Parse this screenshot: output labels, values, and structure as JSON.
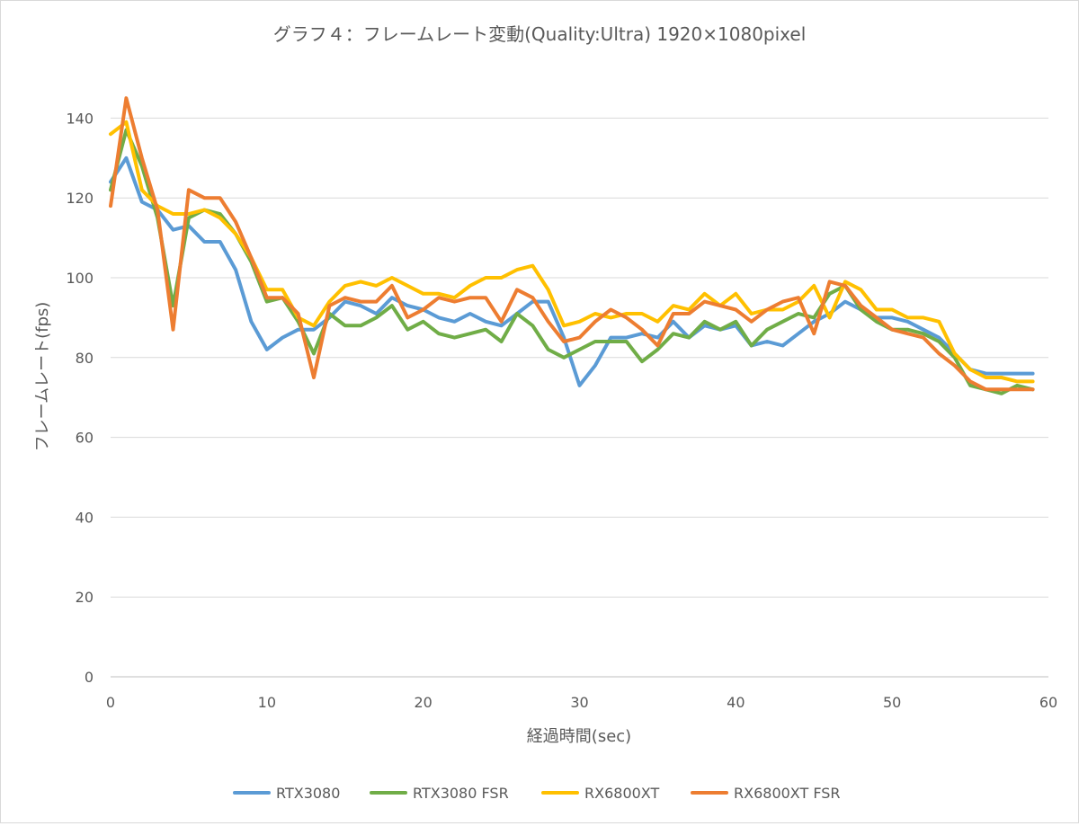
{
  "chart_data": {
    "type": "line",
    "title": "グラフ４：フレームレート変動(Quality:Ultra) 1920×1080pixel",
    "xlabel": "経過時間(sec)",
    "ylabel": "フレームレート(fps)",
    "xlim": [
      0,
      60
    ],
    "ylim": [
      0,
      150
    ],
    "xticks": [
      0,
      10,
      20,
      30,
      40,
      50,
      60
    ],
    "yticks": [
      0,
      20,
      40,
      60,
      80,
      100,
      120,
      140
    ],
    "x_tick_labels": [
      "0",
      "10",
      "20",
      "30",
      "40",
      "50",
      "60"
    ],
    "y_tick_labels": [
      "0",
      "20",
      "40",
      "60",
      "80",
      "100",
      "120",
      "140"
    ],
    "grid": "horizontal",
    "legend_position": "bottom",
    "x": [
      0,
      1,
      2,
      3,
      4,
      5,
      6,
      7,
      8,
      9,
      10,
      11,
      12,
      13,
      14,
      15,
      16,
      17,
      18,
      19,
      20,
      21,
      22,
      23,
      24,
      25,
      26,
      27,
      28,
      29,
      30,
      31,
      32,
      33,
      34,
      35,
      36,
      37,
      38,
      39,
      40,
      41,
      42,
      43,
      44,
      45,
      46,
      47,
      48,
      49,
      50,
      51,
      52,
      53,
      54,
      55,
      56,
      57,
      58,
      59
    ],
    "series": [
      {
        "name": "RTX3080",
        "color": "#5b9bd5",
        "values": [
          124,
          130,
          119,
          117,
          112,
          113,
          109,
          109,
          102,
          89,
          82,
          85,
          87,
          87,
          90,
          94,
          93,
          91,
          95,
          93,
          92,
          90,
          89,
          91,
          89,
          88,
          91,
          94,
          94,
          85,
          73,
          78,
          85,
          85,
          86,
          85,
          89,
          85,
          88,
          87,
          88,
          83,
          84,
          83,
          86,
          89,
          91,
          94,
          92,
          90,
          90,
          89,
          87,
          85,
          81,
          77,
          76,
          76,
          76,
          76
        ],
        "zorder": 0
      },
      {
        "name": "RTX3080 FSR",
        "color": "#70ad47",
        "values": [
          122,
          137,
          128,
          115,
          93,
          115,
          117,
          116,
          111,
          104,
          94,
          95,
          89,
          81,
          91,
          88,
          88,
          90,
          93,
          87,
          89,
          86,
          85,
          86,
          87,
          84,
          91,
          88,
          82,
          80,
          82,
          84,
          84,
          84,
          79,
          82,
          86,
          85,
          89,
          87,
          89,
          83,
          87,
          89,
          91,
          90,
          96,
          98,
          92,
          89,
          87,
          87,
          86,
          84,
          80,
          73,
          72,
          71,
          73,
          72
        ],
        "zorder": 1
      },
      {
        "name": "RX6800XT",
        "color": "#ffc000",
        "values": [
          136,
          139,
          122,
          118,
          116,
          116,
          117,
          115,
          111,
          105,
          97,
          97,
          90,
          88,
          94,
          98,
          99,
          98,
          100,
          98,
          96,
          96,
          95,
          98,
          100,
          100,
          102,
          103,
          97,
          88,
          89,
          91,
          90,
          91,
          91,
          89,
          93,
          92,
          96,
          93,
          96,
          91,
          92,
          92,
          94,
          98,
          90,
          99,
          97,
          92,
          92,
          90,
          90,
          89,
          81,
          77,
          75,
          75,
          74,
          74
        ],
        "zorder": 2
      },
      {
        "name": "RX6800XT FSR",
        "color": "#ed7d31",
        "values": [
          118,
          145,
          130,
          117,
          87,
          122,
          120,
          120,
          114,
          105,
          95,
          95,
          91,
          75,
          93,
          95,
          94,
          94,
          98,
          90,
          92,
          95,
          94,
          95,
          95,
          89,
          97,
          95,
          89,
          84,
          85,
          89,
          92,
          90,
          87,
          83,
          91,
          91,
          94,
          93,
          92,
          89,
          92,
          94,
          95,
          86,
          99,
          98,
          93,
          90,
          87,
          86,
          85,
          81,
          78,
          74,
          72,
          72,
          72,
          72
        ],
        "zorder": 3
      }
    ]
  }
}
